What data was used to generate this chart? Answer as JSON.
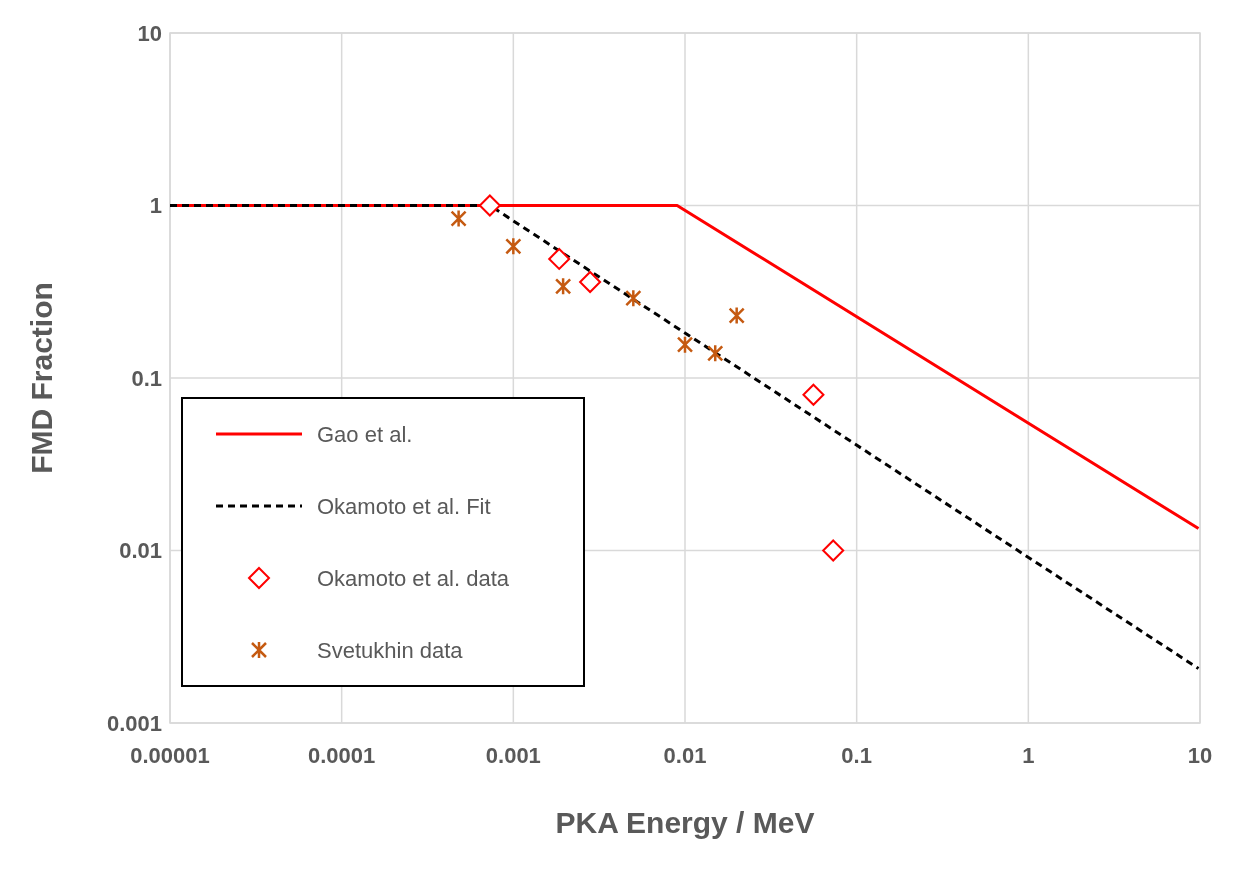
{
  "chart_data": {
    "type": "scatter",
    "xlabel": "PKA Energy / MeV",
    "ylabel": "FMD Fraction",
    "log": "xy",
    "grid": true,
    "legend": "bottom left",
    "xlim": [
      1e-05,
      10
    ],
    "ylim": [
      0.001,
      10
    ],
    "xticks": [
      {
        "value": 1e-05,
        "label": "0.00001"
      },
      {
        "value": 0.0001,
        "label": "0.0001"
      },
      0.001,
      0.01,
      0.1,
      1,
      10
    ],
    "yticks": [
      0.001,
      0.01,
      0.1,
      1,
      10
    ],
    "series": [
      {
        "name": "Gao et al.",
        "type": "line",
        "color": "#ff0000",
        "line_style": "solid",
        "marker": "none",
        "x": [
          1e-05,
          0.009,
          9.8
        ],
        "values": [
          1,
          1,
          0.0134
        ]
      },
      {
        "name": "Okamoto et al. Fit",
        "type": "line",
        "color": "#000000",
        "line_style": "dashed",
        "marker": "none",
        "x": [
          1e-05,
          0.00073,
          9.8
        ],
        "values": [
          1,
          1,
          0.00207
        ]
      },
      {
        "name": "Okamoto et al. data",
        "type": "scatter",
        "color": "#ff0000",
        "marker": "diamond",
        "x": [
          0.00073,
          0.00185,
          0.0028,
          0.056,
          0.073
        ],
        "values": [
          1,
          0.49,
          0.36,
          0.08,
          0.01
        ]
      },
      {
        "name": "Svetukhin data",
        "type": "scatter",
        "color": "#c55a11",
        "marker": "cross",
        "x": [
          0.00048,
          0.001,
          0.00195,
          0.005,
          0.01,
          0.015,
          0.02
        ],
        "values": [
          0.84,
          0.58,
          0.34,
          0.29,
          0.156,
          0.139,
          0.23
        ]
      }
    ]
  }
}
